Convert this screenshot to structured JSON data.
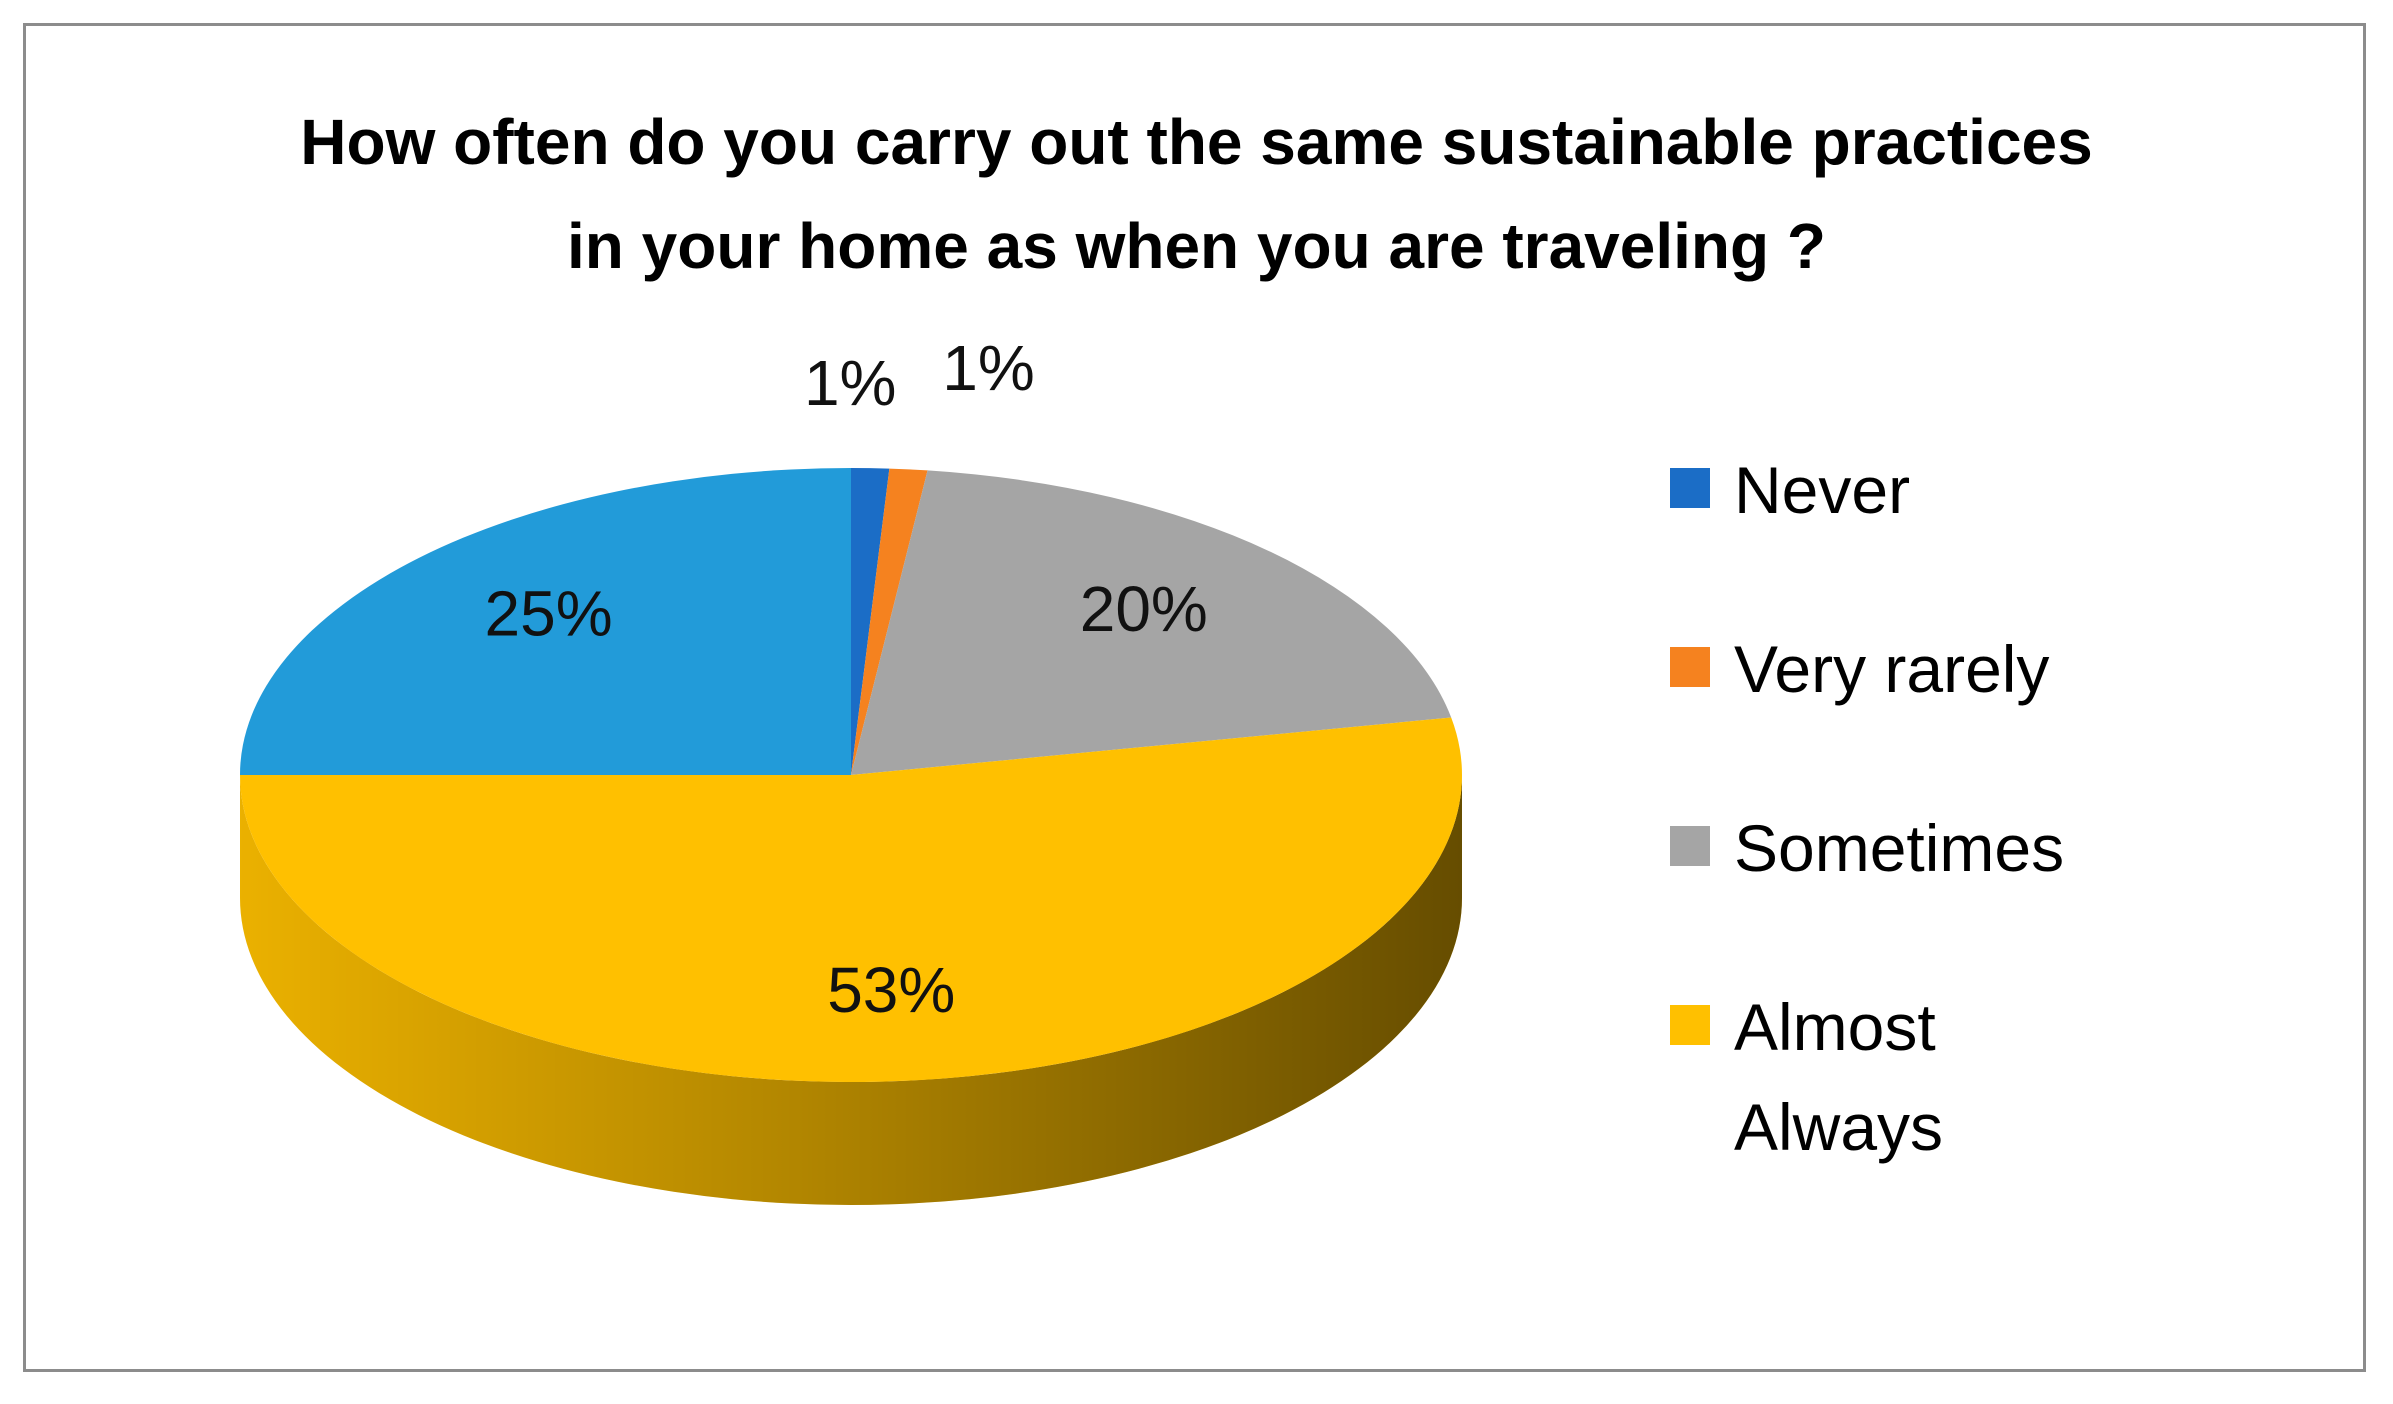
{
  "chart_data": {
    "type": "pie",
    "title": "How often do you carry out the same sustainable practices in your home as when you are traveling ?",
    "categories": [
      "Never",
      "Very rarely",
      "Sometimes",
      "Almost Always",
      null
    ],
    "values": [
      1,
      1,
      20,
      53,
      25
    ],
    "value_labels": [
      "1%",
      "1%",
      "20%",
      "53%",
      "25%"
    ],
    "colors": [
      "#1b6dc6",
      "#f5821f",
      "#a5a5a5",
      "#ffc000",
      "#229bd9"
    ],
    "legend": "right"
  }
}
